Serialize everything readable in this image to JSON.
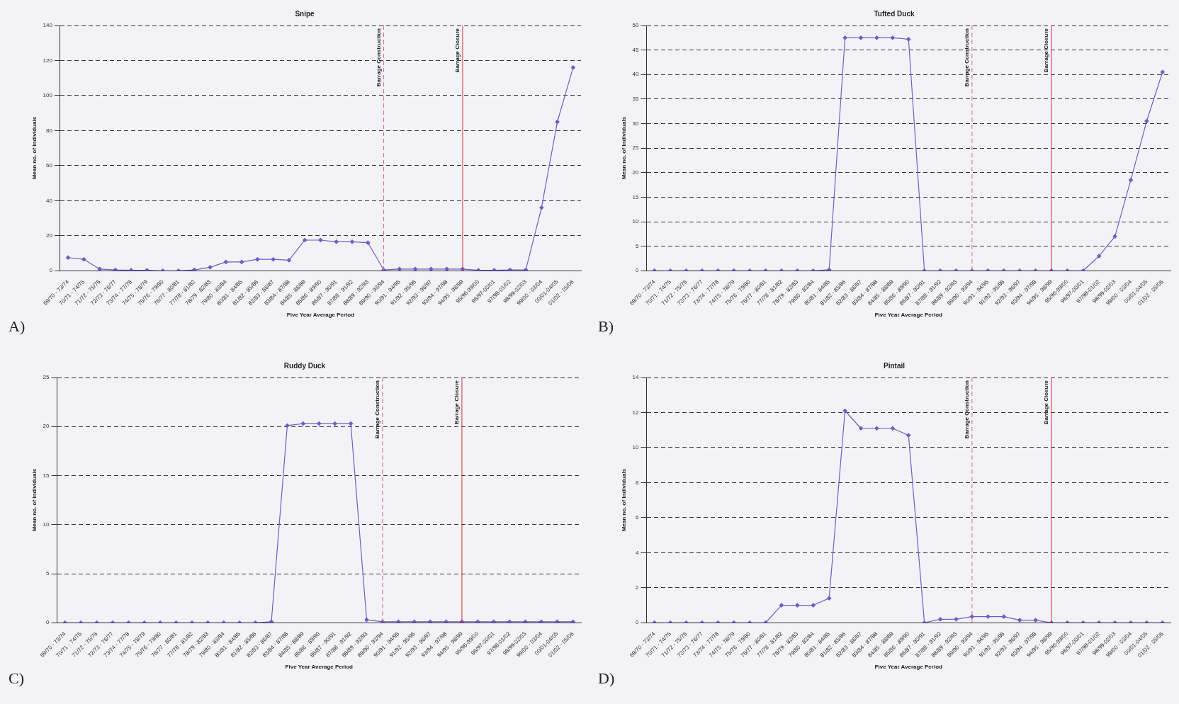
{
  "chart_data": [
    {
      "type": "line",
      "title": "Snipe",
      "xlabel": "Five Year Average Period",
      "ylabel": "Mean no. of Individuals",
      "annotations": [
        "A)"
      ],
      "categories": [
        "69/70 - 73/74",
        "70/71 - 74/75",
        "71/72 - 75/76",
        "72/73 - 76/77",
        "73/74 - 77/78",
        "74/75 - 78/79",
        "75/76 - 79/80",
        "76/77 - 80/81",
        "77/78 - 81/82",
        "78/79 - 82/83",
        "79/80 - 83/84",
        "80/81 - 84/85",
        "81/82 - 85/86",
        "82/83 - 86/87",
        "83/84 - 87/88",
        "84/85 - 88/89",
        "85/86 - 89/90",
        "86/87 - 90/91",
        "87/88 - 91/92",
        "88/89 - 92/93",
        "89/90 - 93/94",
        "90/91 - 94/95",
        "91/92 - 95/96",
        "92/93 - 96/97",
        "93/94 - 97/98",
        "94/95 - 98/99",
        "95/96-99/00",
        "96/97-00/01",
        "97/98-01/02",
        "98/99-02/03",
        "99/00 - 03/04",
        "00/01-04/05",
        "01/02 - 05/06"
      ],
      "series": [
        {
          "color": "#6a5fc8",
          "values": [
            7.5,
            6.5,
            1,
            0.5,
            0.3,
            0.3,
            0,
            0,
            0.5,
            2,
            5,
            5,
            6.5,
            6.5,
            6,
            17.5,
            17.5,
            16.5,
            16.5,
            16,
            0.5,
            1,
            1,
            1,
            1,
            1,
            0.3,
            0.3,
            0.5,
            0.5,
            36,
            85,
            116
          ]
        }
      ],
      "ylim": [
        0,
        140
      ],
      "yticks": [
        0,
        20,
        40,
        60,
        80,
        100,
        120,
        140
      ],
      "grid": "y",
      "marker": "diamond",
      "line_style": "solid",
      "ref_lines": [
        {
          "axis": "x",
          "value": "89/90 - 93/94",
          "label": "Barrage Construction",
          "color": "#e0608a",
          "line_style": "dashed"
        },
        {
          "axis": "x",
          "value": "94/95 - 98/99",
          "label": "Barrage Closure",
          "color": "#d83030",
          "line_style": "solid"
        }
      ]
    },
    {
      "type": "line",
      "title": "Tufted Duck",
      "xlabel": "Five Year Average Period",
      "ylabel": "Mean no. of Individuals",
      "annotations": [
        "B)"
      ],
      "categories": [
        "69/70 - 73/74",
        "70/71 - 74/75",
        "71/72 - 75/76",
        "72/73 - 76/77",
        "73/74 - 77/78",
        "74/75 - 78/79",
        "75/76 - 79/80",
        "76/77 - 80/81",
        "77/78 - 81/82",
        "78/79 - 82/83",
        "79/80 - 83/84",
        "80/81 - 84/85",
        "81/82 - 85/86",
        "82/83 - 86/87",
        "83/84 - 87/88",
        "84/85 - 88/89",
        "85/86 - 89/90",
        "86/87 - 90/91",
        "87/88 - 91/92",
        "88/89 - 92/93",
        "89/90 - 93/94",
        "90/91 - 94/95",
        "91/92 - 95/96",
        "92/93 - 96/97",
        "93/94 - 97/98",
        "94/95 - 98/99",
        "95/96-99/00",
        "96/97-00/01",
        "97/98-01/02",
        "98/99-02/03",
        "99/00 - 03/04",
        "00/01-04/05",
        "01/02 - 05/06"
      ],
      "series": [
        {
          "color": "#6a5fc8",
          "values": [
            0,
            0,
            0,
            0,
            0,
            0,
            0,
            0,
            0,
            0,
            0,
            0.2,
            47.5,
            47.5,
            47.5,
            47.5,
            47.2,
            0,
            0,
            0,
            0,
            0,
            0,
            0,
            0,
            0,
            0,
            0,
            3,
            7,
            18.5,
            30.5,
            40.5
          ]
        }
      ],
      "ylim": [
        0,
        50
      ],
      "yticks": [
        0,
        5,
        10,
        15,
        20,
        25,
        30,
        35,
        40,
        45,
        50
      ],
      "grid": "y",
      "marker": "diamond",
      "line_style": "solid",
      "ref_lines": [
        {
          "axis": "x",
          "value": "89/90 - 93/94",
          "label": "Barrage Construction",
          "color": "#e0608a",
          "line_style": "dashed"
        },
        {
          "axis": "x",
          "value": "94/95 - 98/99",
          "label": "Barrage Closure",
          "color": "#d83030",
          "line_style": "solid"
        }
      ]
    },
    {
      "type": "line",
      "title": "Ruddy Duck",
      "xlabel": "Five Year Average Period",
      "ylabel": "Mean no. of Individuals",
      "annotations": [
        "C)"
      ],
      "categories": [
        "69/70 - 73/74",
        "70/71 - 74/75",
        "71/72 - 75/76",
        "72/73 - 76/77",
        "73/74 - 77/78",
        "74/75 - 78/79",
        "75/76 - 79/80",
        "76/77 - 80/81",
        "77/78 - 81/82",
        "78/79 - 82/83",
        "79/80 - 83/84",
        "80/81 - 84/85",
        "81/82 - 85/86",
        "82/83 - 86/87",
        "83/84 - 87/88",
        "84/85 - 88/89",
        "85/86 - 89/90",
        "86/87 - 90/91",
        "87/88 - 91/92",
        "88/89 - 92/93",
        "89/90 - 93/94",
        "90/91 - 94/95",
        "91/92 - 95/96",
        "92/93 - 96/97",
        "93/94 - 97/98",
        "94/95 - 98/99",
        "95/96-99/00",
        "96/97-00/01",
        "97/98-01/02",
        "98/99-02/03",
        "99/00 - 03/04",
        "00/01-04/05",
        "01/02 - 05/06"
      ],
      "series": [
        {
          "color": "#6a5fc8",
          "values": [
            0,
            0,
            0,
            0,
            0,
            0,
            0,
            0,
            0,
            0,
            0,
            0,
            0,
            0.1,
            20.1,
            20.3,
            20.3,
            20.3,
            20.3,
            0.3,
            0.1,
            0.1,
            0.1,
            0.1,
            0.1,
            0.1,
            0.1,
            0.1,
            0.1,
            0.1,
            0.1,
            0.1,
            0.1
          ]
        }
      ],
      "ylim": [
        0,
        25
      ],
      "yticks": [
        0,
        5,
        10,
        15,
        20,
        25
      ],
      "grid": "y",
      "marker": "diamond",
      "line_style": "solid",
      "ref_lines": [
        {
          "axis": "x",
          "value": "89/90 - 93/94",
          "label": "Barrage Construction",
          "color": "#e0608a",
          "line_style": "dashed"
        },
        {
          "axis": "x",
          "value": "94/95 - 98/99",
          "label": "Barrage Closure",
          "color": "#d83030",
          "line_style": "solid"
        }
      ]
    },
    {
      "type": "line",
      "title": "Pintail",
      "xlabel": "Five Year Average Period",
      "ylabel": "Mean no. of Individuals",
      "annotations": [
        "D)"
      ],
      "categories": [
        "69/70 - 73/74",
        "70/71 - 74/75",
        "71/72 - 75/76",
        "72/73 - 76/77",
        "73/74 - 77/78",
        "74/75 - 78/79",
        "75/76 - 79/80",
        "76/77 - 80/81",
        "77/78 - 81/82",
        "78/79 - 82/83",
        "79/80 - 83/84",
        "80/81 - 84/85",
        "81/82 - 85/86",
        "82/83 - 86/87",
        "83/84 - 87/88",
        "84/85 - 88/89",
        "85/86 - 89/90",
        "86/87 - 90/91",
        "87/88 - 91/92",
        "88/89 - 92/93",
        "89/90 - 93/94",
        "90/91 - 94/95",
        "91/92 - 95/96",
        "92/93 - 96/97",
        "93/94 - 97/98",
        "94/95 - 98/99",
        "95/96-99/00",
        "96/97-00/01",
        "97/98-01/02",
        "98/99-02/03",
        "99/00 - 03/04",
        "00/01-04/05",
        "01/02 - 05/06"
      ],
      "series": [
        {
          "color": "#6a5fc8",
          "values": [
            0,
            0,
            0,
            0,
            0,
            0,
            0,
            0,
            1,
            1,
            1,
            1.4,
            12.1,
            11.1,
            11.1,
            11.1,
            10.7,
            0,
            0.2,
            0.2,
            0.35,
            0.35,
            0.35,
            0.15,
            0.15,
            0,
            0,
            0,
            0,
            0,
            0,
            0,
            0
          ]
        }
      ],
      "ylim": [
        0,
        14
      ],
      "yticks": [
        0,
        2,
        4,
        6,
        8,
        10,
        12,
        14
      ],
      "grid": "y",
      "marker": "diamond",
      "line_style": "solid",
      "ref_lines": [
        {
          "axis": "x",
          "value": "89/90 - 93/94",
          "label": "Barrage Construction",
          "color": "#e0608a",
          "line_style": "dashed"
        },
        {
          "axis": "x",
          "value": "94/95 - 98/99",
          "label": "Barrage Closure",
          "color": "#d83030",
          "line_style": "solid"
        }
      ]
    }
  ]
}
